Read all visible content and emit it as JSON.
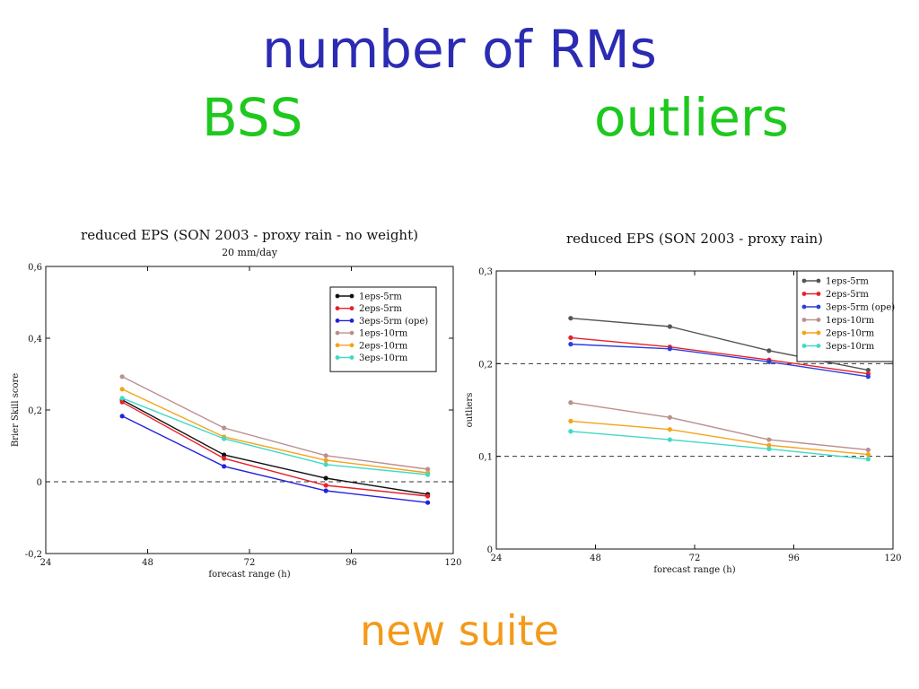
{
  "slide": {
    "title": "number of RMs",
    "subtitle_left": "BSS",
    "subtitle_right": "outliers",
    "footer": "new suite"
  },
  "colors": {
    "title": "#2b2bb3",
    "subtitle": "#1fc81f",
    "footer": "#f39a1a"
  },
  "chart_data": [
    {
      "type": "line",
      "title": "reduced EPS (SON 2003 - proxy rain - no weight)",
      "subtitle": "20 mm/day",
      "xlabel": "forecast range (h)",
      "ylabel": "Brier Skill score",
      "xlim": [
        24,
        120
      ],
      "ylim": [
        -0.2,
        0.6
      ],
      "xticks": [
        24,
        48,
        72,
        96,
        120
      ],
      "xtick_labels": [
        "24",
        "48",
        "72",
        "96",
        "120"
      ],
      "yticks": [
        -0.2,
        0,
        0.2,
        0.4,
        0.6
      ],
      "ytick_labels": [
        "-0,2",
        "0",
        "0,2",
        "0,4",
        "0,6"
      ],
      "ref_lines": [
        0
      ],
      "legend_position": "top-right",
      "x": [
        42,
        66,
        90,
        114
      ],
      "series": [
        {
          "name": "1eps-5rm",
          "color": "#111111",
          "values": [
            0.228,
            0.075,
            0.01,
            -0.035
          ]
        },
        {
          "name": "2eps-5rm",
          "color": "#e8202a",
          "values": [
            0.222,
            0.065,
            -0.01,
            -0.04
          ]
        },
        {
          "name": "3eps-5rm (ope)",
          "color": "#2222dd",
          "values": [
            0.183,
            0.043,
            -0.025,
            -0.058
          ]
        },
        {
          "name": "1eps-10rm",
          "color": "#bc8f8f",
          "values": [
            0.293,
            0.15,
            0.073,
            0.035
          ]
        },
        {
          "name": "2eps-10rm",
          "color": "#f5a31a",
          "values": [
            0.258,
            0.125,
            0.06,
            0.025
          ]
        },
        {
          "name": "3eps-10rm",
          "color": "#40d9c8",
          "values": [
            0.233,
            0.12,
            0.048,
            0.02
          ]
        }
      ]
    },
    {
      "type": "line",
      "title": "reduced EPS (SON 2003 - proxy rain)",
      "xlabel": "forecast range (h)",
      "ylabel": "outliers",
      "xlim": [
        24,
        120
      ],
      "ylim": [
        0,
        0.3
      ],
      "xticks": [
        24,
        48,
        72,
        96,
        120
      ],
      "xtick_labels": [
        "24",
        "48",
        "72",
        "96",
        "120"
      ],
      "yticks": [
        0,
        0.1,
        0.2,
        0.3
      ],
      "ytick_labels": [
        "0",
        "0,1",
        "0,2",
        "0,3"
      ],
      "ref_lines": [
        0.1,
        0.2
      ],
      "legend_position": "top-right",
      "x": [
        42,
        66,
        90,
        114
      ],
      "series": [
        {
          "name": "1eps-5rm",
          "color": "#555555",
          "values": [
            0.249,
            0.24,
            0.214,
            0.193
          ]
        },
        {
          "name": "2eps-5rm",
          "color": "#e8202a",
          "values": [
            0.228,
            0.218,
            0.204,
            0.189
          ]
        },
        {
          "name": "3eps-5rm (ope)",
          "color": "#2a3fdd",
          "values": [
            0.221,
            0.216,
            0.202,
            0.186
          ]
        },
        {
          "name": "1eps-10rm",
          "color": "#bc8f8f",
          "values": [
            0.158,
            0.142,
            0.118,
            0.107
          ]
        },
        {
          "name": "2eps-10rm",
          "color": "#f5a31a",
          "values": [
            0.138,
            0.129,
            0.112,
            0.102
          ]
        },
        {
          "name": "3eps-10rm",
          "color": "#40d9c8",
          "values": [
            0.127,
            0.118,
            0.108,
            0.097
          ]
        }
      ]
    }
  ]
}
